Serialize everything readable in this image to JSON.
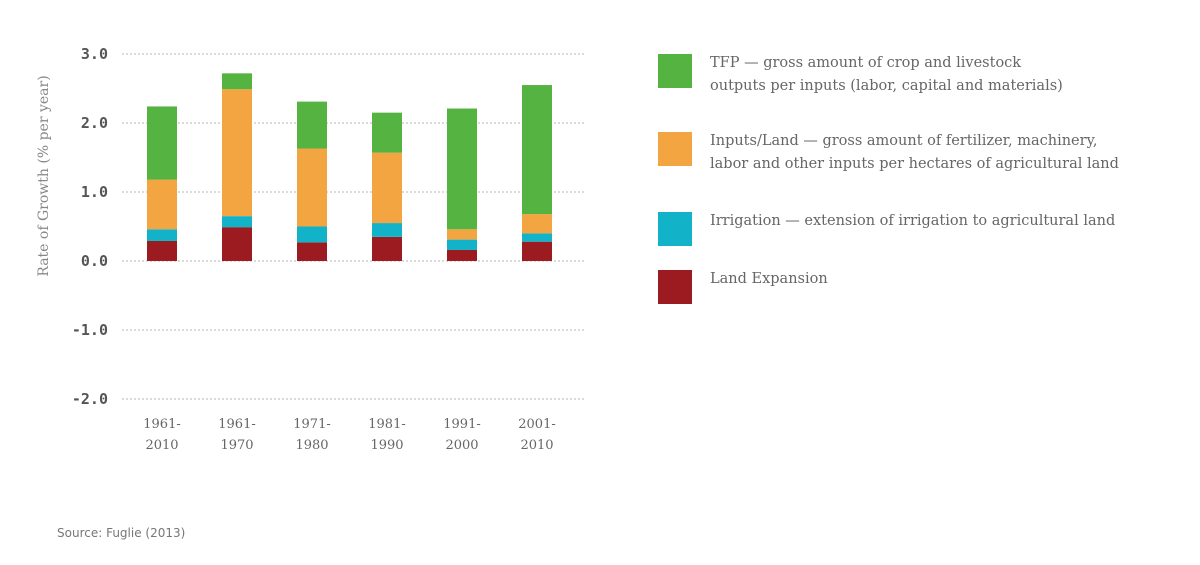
{
  "chart_data": {
    "type": "bar",
    "stacked": true,
    "ylabel": "Rate of Growth (% per year)",
    "ylim": [
      -2.0,
      3.0
    ],
    "yticks": [
      "3.0",
      "2.0",
      "1.0",
      "0.0",
      "-1.0",
      "-2.0"
    ],
    "categories": [
      [
        "1961-",
        "2010"
      ],
      [
        "1961-",
        "1970"
      ],
      [
        "1971-",
        "1980"
      ],
      [
        "1981-",
        "1990"
      ],
      [
        "1991-",
        "2000"
      ],
      [
        "2001-",
        "2010"
      ]
    ],
    "series": [
      {
        "name": "Land Expansion",
        "color": "#9b1b20",
        "values": [
          0.29,
          0.49,
          0.27,
          0.35,
          0.16,
          0.28
        ]
      },
      {
        "name": "Irrigation",
        "color": "#12b3c9",
        "values": [
          0.17,
          0.16,
          0.23,
          0.2,
          0.15,
          0.12
        ]
      },
      {
        "name": "Inputs/Land",
        "color": "#f2a541",
        "values": [
          0.72,
          1.84,
          1.13,
          1.02,
          0.15,
          0.28
        ]
      },
      {
        "name": "TFP",
        "color": "#55b342",
        "values": [
          1.06,
          0.23,
          0.68,
          0.58,
          1.75,
          1.87
        ]
      }
    ],
    "grid": true,
    "legend_position": "right"
  },
  "legend": [
    {
      "lines": [
        "TFP — gross amount of crop and livestock",
        "outputs per inputs (labor, capital and materials)"
      ],
      "color": "#55b342"
    },
    {
      "lines": [
        "Inputs/Land — gross amount of fertilizer, machinery,",
        "labor and other inputs per hectares of agricultural land"
      ],
      "color": "#f2a541"
    },
    {
      "lines": [
        "Irrigation — extension of irrigation to agricultural land"
      ],
      "color": "#12b3c9"
    },
    {
      "lines": [
        "Land Expansion"
      ],
      "color": "#9b1b20"
    }
  ],
  "source": "Source: Fuglie (2013)"
}
